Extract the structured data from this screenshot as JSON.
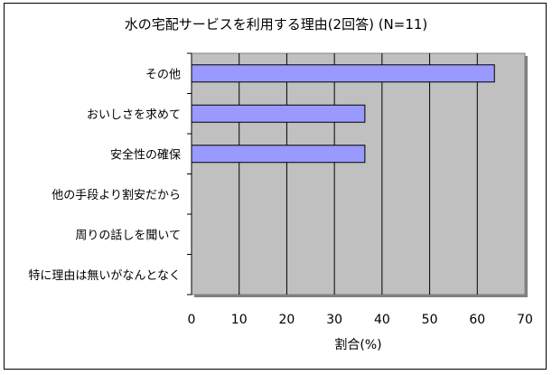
{
  "chart_data": {
    "type": "bar",
    "orientation": "horizontal",
    "title": "水の宅配サービスを利用する理由(2回答) (N=11)",
    "xlabel": "割合(%)",
    "categories": [
      "その他",
      "おいしさを求めて",
      "安全性の確保",
      "他の手段より割安だから",
      "周りの話しを聞いて",
      "特に理由は無いがなんとなく"
    ],
    "values": [
      63.6,
      36.4,
      36.4,
      0,
      0,
      0
    ],
    "xlim": [
      0,
      70
    ],
    "xticks": [
      "0",
      "10",
      "20",
      "30",
      "40",
      "50",
      "60",
      "70"
    ],
    "grid": true,
    "legend": "none",
    "colors": {
      "bar": "#9999ff",
      "plot_bg": "#c0c0c0",
      "grid": "#000000"
    }
  }
}
